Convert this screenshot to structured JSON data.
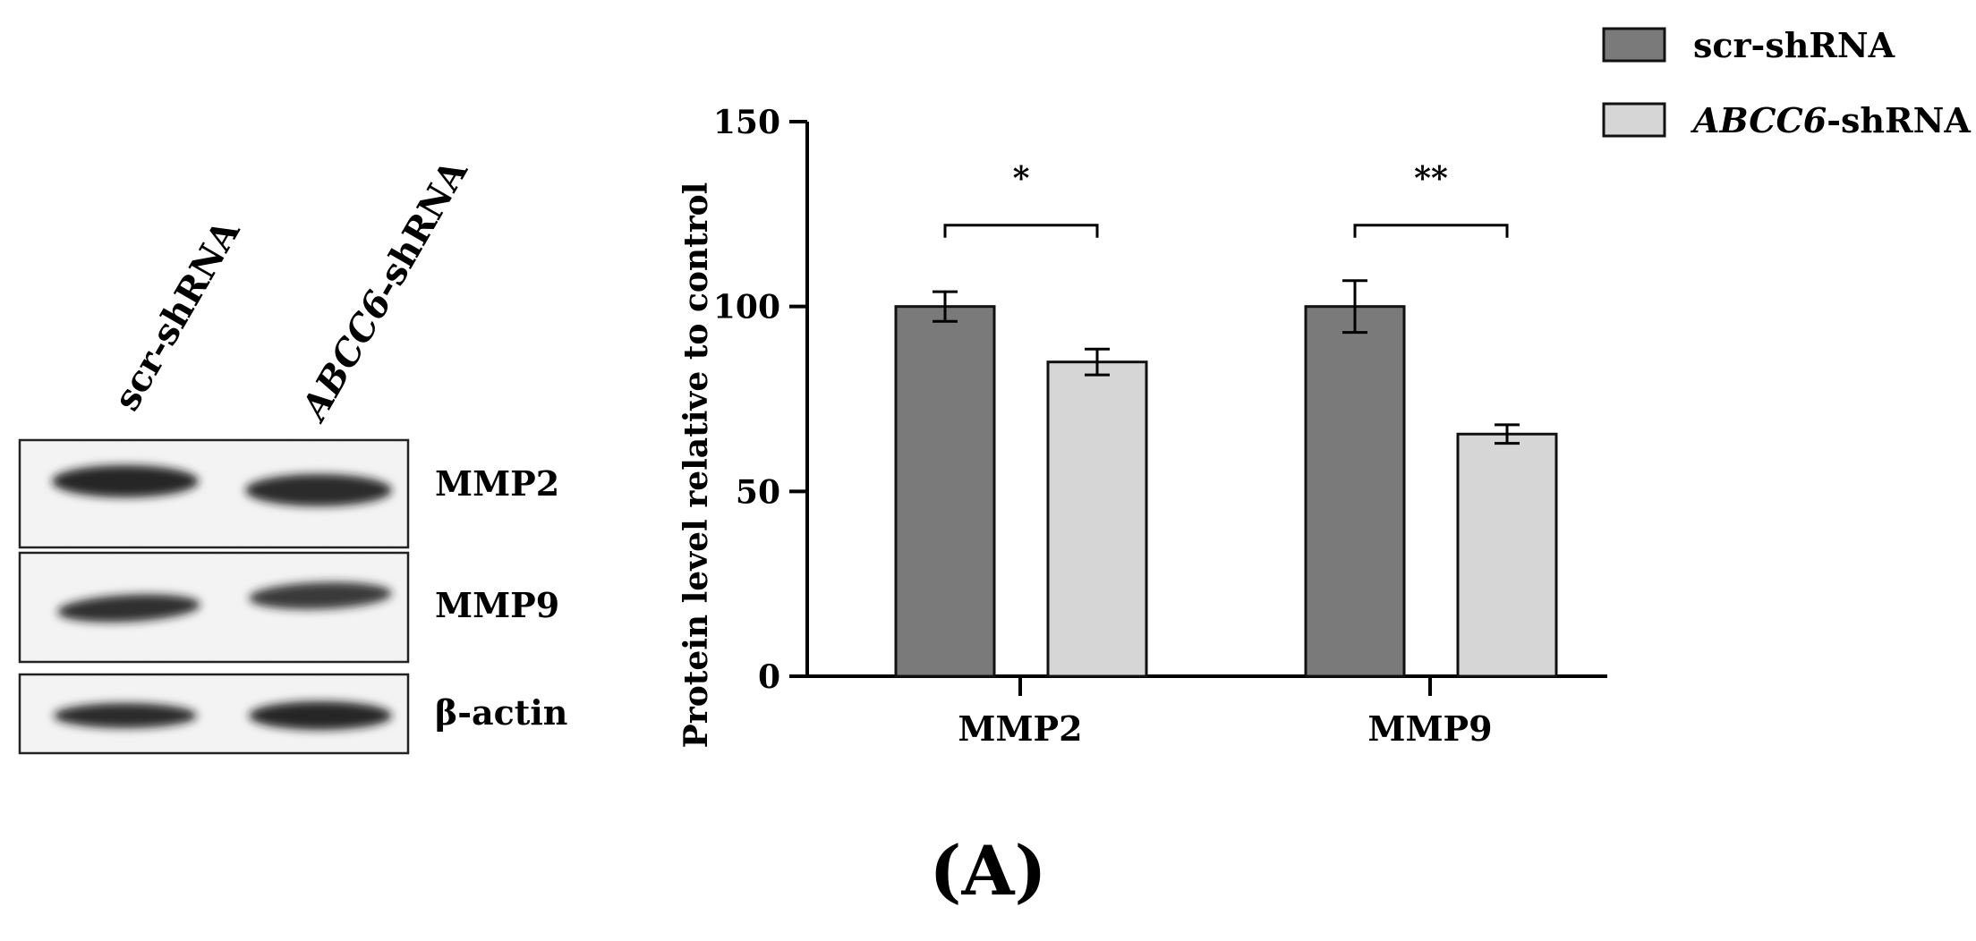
{
  "panel_label": "(A)",
  "western_blot": {
    "lanes": [
      {
        "prefix": "",
        "italic": "",
        "suffix": "scr-shRNA"
      },
      {
        "prefix": "",
        "italic": "ABCC6",
        "suffix": "-shRNA"
      }
    ],
    "bands": [
      {
        "label": "MMP2",
        "intensity": [
          0.95,
          0.9
        ]
      },
      {
        "label": "MMP9",
        "intensity": [
          0.85,
          0.8
        ]
      },
      {
        "label": "β-actin",
        "intensity": [
          0.9,
          0.95
        ]
      }
    ]
  },
  "chart_data": {
    "type": "bar",
    "categories": [
      "MMP2",
      "MMP9"
    ],
    "series": [
      {
        "name": "scr-shRNA",
        "name_italic": "",
        "name_suffix": "scr-shRNA",
        "color": "#7a7a7a",
        "values": [
          100,
          100
        ],
        "errors": [
          4,
          7
        ]
      },
      {
        "name": "ABCC6-shRNA",
        "name_italic": "ABCC6",
        "name_suffix": "-shRNA",
        "color": "#d6d6d6",
        "values": [
          85,
          65.5
        ],
        "errors": [
          3.5,
          2.5
        ]
      }
    ],
    "significance": [
      "*",
      "**"
    ],
    "ylabel": "Protein level relative to control",
    "xlabel": "",
    "ylim": [
      0,
      150
    ],
    "yticks": [
      0,
      50,
      100,
      150
    ],
    "legend_position": "top-right"
  }
}
